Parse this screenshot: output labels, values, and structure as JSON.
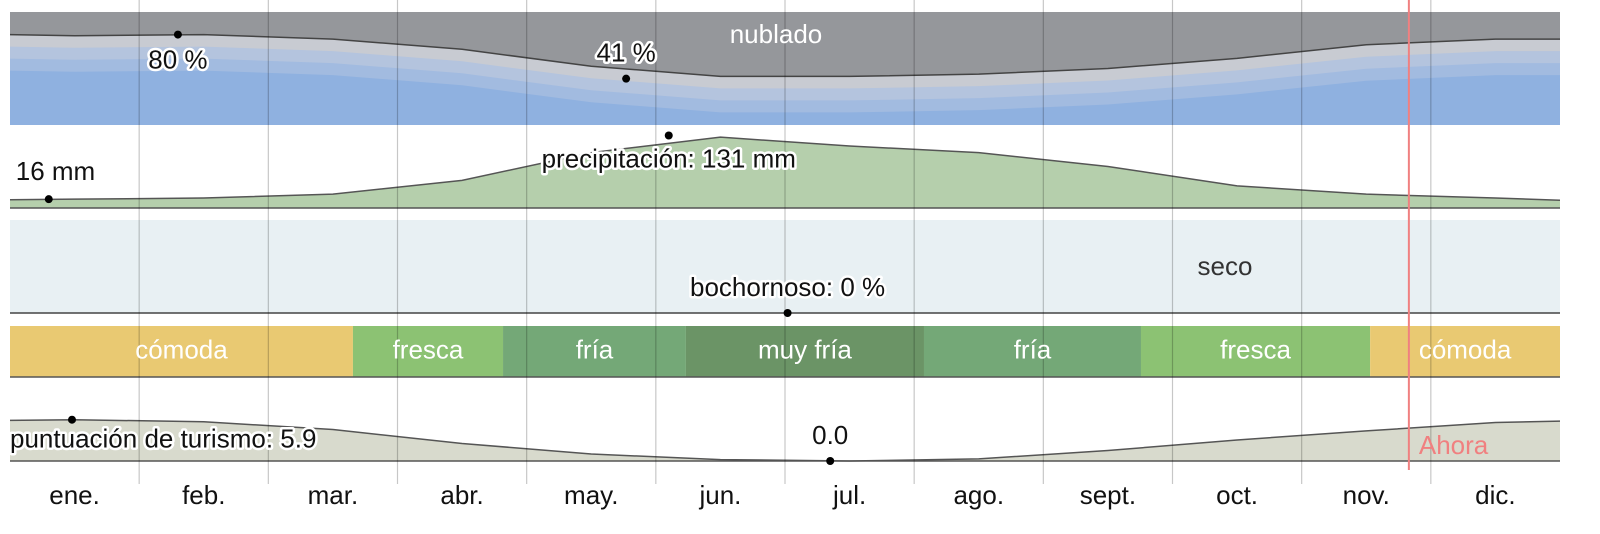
{
  "months": [
    "ene.",
    "feb.",
    "mar.",
    "abr.",
    "may.",
    "jun.",
    "jul.",
    "ago.",
    "sept.",
    "oct.",
    "nov.",
    "dic."
  ],
  "now": {
    "x": 10.83,
    "label": "Ahora",
    "color": "#f08080"
  },
  "chart_data": [
    {
      "type": "cloud",
      "title": "nublado",
      "xlim": [
        0,
        12
      ],
      "ylim": [
        0,
        100
      ],
      "color": "#8fb1e0",
      "x": [
        0,
        0.5,
        1.5,
        2.5,
        3.5,
        4.5,
        5.5,
        6.5,
        7.5,
        8.5,
        9.5,
        10.5,
        11.5,
        12
      ],
      "values": [
        80,
        79,
        80,
        76,
        67,
        52,
        43,
        43,
        45,
        50,
        59,
        71,
        76,
        76
      ],
      "annotations": [
        {
          "x": 1.3,
          "value": 80,
          "label": "80 %"
        },
        {
          "x": 4.77,
          "value": 41,
          "label": "41 %"
        }
      ]
    },
    {
      "type": "area",
      "xlim": [
        0,
        12
      ],
      "ylim": [
        0,
        150
      ],
      "color": "#b5cfac",
      "x": [
        0,
        0.5,
        1.5,
        2.5,
        3.5,
        4.5,
        5.5,
        6.5,
        7.5,
        8.5,
        9.5,
        10.5,
        11.5,
        12
      ],
      "values": [
        15,
        16,
        18,
        25,
        50,
        100,
        128,
        112,
        100,
        75,
        40,
        25,
        18,
        14
      ],
      "annotations": [
        {
          "x": 0.3,
          "value": 16,
          "label": "16 mm"
        },
        {
          "x": 5.1,
          "value": 131,
          "label": "precipitación: 131 mm"
        }
      ]
    },
    {
      "type": "humidity",
      "title": "seco",
      "xlim": [
        0,
        12
      ],
      "ylim": [
        0,
        100
      ],
      "color": "#e8f0f3",
      "x": [
        0,
        12
      ],
      "values": [
        0,
        0
      ],
      "annotations": [
        {
          "x": 6.02,
          "value": 0,
          "label": "bochornoso: 0 %"
        }
      ]
    },
    {
      "type": "bands",
      "xlim": [
        0,
        12
      ],
      "bands": [
        {
          "label": "cómoda",
          "start": 0,
          "end": 2.655,
          "color": "#e9c972"
        },
        {
          "label": "fresca",
          "start": 2.655,
          "end": 3.817,
          "color": "#8cc273"
        },
        {
          "label": "fría",
          "start": 3.817,
          "end": 5.233,
          "color": "#74a877"
        },
        {
          "label": "muy fría",
          "start": 5.233,
          "end": 7.076,
          "color": "#6b9466"
        },
        {
          "label": "fría",
          "start": 7.076,
          "end": 8.756,
          "color": "#74a877"
        },
        {
          "label": "fresca",
          "start": 8.756,
          "end": 10.53,
          "color": "#8cc273"
        },
        {
          "label": "cómoda",
          "start": 10.53,
          "end": 12,
          "color": "#e9c972"
        }
      ]
    },
    {
      "type": "area",
      "xlim": [
        0,
        12
      ],
      "ylim": [
        0,
        10
      ],
      "color": "#d8dacd",
      "x": [
        0,
        0.5,
        1.5,
        2.5,
        3.5,
        4.5,
        5.5,
        6.5,
        7.5,
        8.5,
        9.5,
        10.5,
        11.5,
        12
      ],
      "values": [
        5.8,
        5.9,
        5.6,
        4.5,
        2.5,
        1,
        0.2,
        0,
        0.3,
        1.5,
        3,
        4.3,
        5.5,
        5.7
      ],
      "annotations": [
        {
          "x": 0.48,
          "value": 5.9,
          "label": "puntuación de turismo: 5.9"
        },
        {
          "x": 6.35,
          "value": 0,
          "label": "0.0"
        }
      ]
    }
  ]
}
